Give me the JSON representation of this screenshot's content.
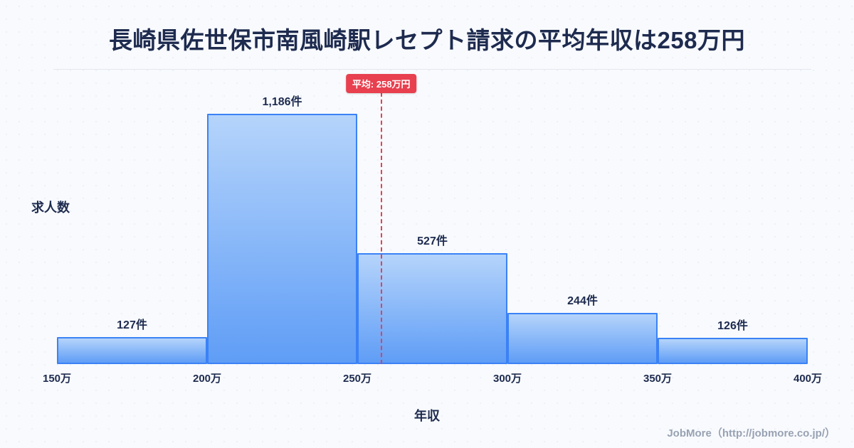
{
  "page": {
    "title": "長崎県佐世保市南風崎駅レセプト請求の平均年収は258万円",
    "footer": "JobMore（http://jobmore.co.jp/）"
  },
  "chart_data": {
    "type": "bar",
    "title": "長崎県佐世保市南風崎駅レセプト請求の平均年収は258万円",
    "xlabel": "年収",
    "ylabel": "求人数",
    "x_range": [
      150,
      400
    ],
    "x_ticks": [
      "150万",
      "200万",
      "250万",
      "300万",
      "350万",
      "400万"
    ],
    "bins": [
      {
        "range": [
          150,
          200
        ],
        "count": 127,
        "label": "127件"
      },
      {
        "range": [
          200,
          250
        ],
        "count": 1186,
        "label": "1,186件"
      },
      {
        "range": [
          250,
          300
        ],
        "count": 527,
        "label": "527件"
      },
      {
        "range": [
          300,
          350
        ],
        "count": 244,
        "label": "244件"
      },
      {
        "range": [
          350,
          400
        ],
        "count": 126,
        "label": "126件"
      }
    ],
    "mean": {
      "value": 258,
      "label": "平均: 258万円"
    },
    "legend": [],
    "grid": false,
    "colors": {
      "text": "#1e2b4f",
      "bar_fill_top": "#b5d4fb",
      "bar_fill_bottom": "#5f9df6",
      "bar_border": "#3b82f6",
      "mean_line": "#e8404f",
      "footer_text": "#98a2b3",
      "background": "#f8fafd"
    }
  }
}
